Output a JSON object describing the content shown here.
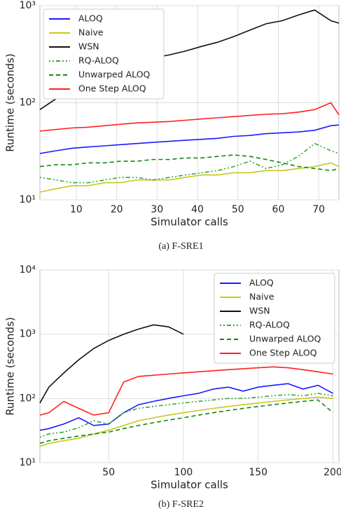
{
  "chart_data": [
    {
      "type": "line",
      "caption": "(a) F-SRE1",
      "xlabel": "Simulator calls",
      "ylabel": "Runtime (seconds)",
      "log_y": true,
      "grid": true,
      "legend": "upper left",
      "xlim": [
        1,
        75
      ],
      "xticks": [
        10,
        20,
        30,
        40,
        50,
        60,
        70
      ],
      "ylim": [
        10,
        1000
      ],
      "yticks": [
        {
          "value": 10,
          "label": "10¹"
        },
        {
          "value": 100,
          "label": "10²"
        },
        {
          "value": 1000,
          "label": "10³"
        }
      ],
      "x": [
        1,
        5,
        9,
        13,
        17,
        21,
        25,
        29,
        33,
        37,
        41,
        45,
        49,
        53,
        57,
        61,
        65,
        69,
        73,
        75
      ],
      "series": [
        {
          "name": "ALOQ",
          "color": "#1a1aff",
          "linestyle": "solid",
          "values": [
            30,
            32,
            34,
            35,
            36,
            37,
            38,
            39,
            40,
            41,
            42,
            43,
            45,
            46,
            48,
            49,
            50,
            52,
            58,
            59
          ]
        },
        {
          "name": "Naive",
          "color": "#c8c81e",
          "linestyle": "solid",
          "values": [
            12,
            13,
            14,
            14,
            15,
            15,
            16,
            16,
            16,
            17,
            18,
            18,
            19,
            19,
            20,
            20,
            21,
            22,
            24,
            22
          ]
        },
        {
          "name": "WSN",
          "color": "#111111",
          "linestyle": "solid",
          "values": [
            85,
            110,
            150,
            170,
            200,
            220,
            260,
            290,
            310,
            340,
            380,
            420,
            480,
            560,
            650,
            700,
            800,
            900,
            700,
            660
          ]
        },
        {
          "name": "RQ-ALOQ",
          "color": "#33aa33",
          "linestyle": "dashdot",
          "values": [
            17,
            16,
            15,
            15,
            16,
            17,
            17,
            16,
            17,
            18,
            19,
            20,
            22,
            25,
            21,
            23,
            28,
            38,
            32,
            30
          ]
        },
        {
          "name": "Unwarped ALOQ",
          "color": "#118811",
          "linestyle": "dashed",
          "values": [
            22,
            23,
            23,
            24,
            24,
            25,
            25,
            26,
            26,
            27,
            27,
            28,
            29,
            28,
            26,
            24,
            22,
            21,
            20,
            21
          ]
        },
        {
          "name": "One Step ALOQ",
          "color": "#ff2020",
          "linestyle": "solid",
          "values": [
            51,
            53,
            55,
            56,
            58,
            60,
            62,
            63,
            64,
            66,
            68,
            70,
            72,
            74,
            76,
            77,
            80,
            85,
            100,
            75
          ]
        }
      ]
    },
    {
      "type": "line",
      "caption": "(b) F-SRE2",
      "xlabel": "Simulator calls",
      "ylabel": "Runtime (seconds)",
      "log_y": true,
      "grid": true,
      "legend": "upper right",
      "xlim": [
        4,
        204
      ],
      "xticks": [
        50,
        100,
        150,
        200
      ],
      "ylim": [
        10,
        10000
      ],
      "yticks": [
        {
          "value": 10,
          "label": "10¹"
        },
        {
          "value": 100,
          "label": "10²"
        },
        {
          "value": 1000,
          "label": "10³"
        },
        {
          "value": 10000,
          "label": "10⁴"
        }
      ],
      "x": [
        4,
        10,
        20,
        30,
        40,
        50,
        60,
        70,
        80,
        90,
        100,
        110,
        120,
        130,
        140,
        150,
        160,
        170,
        180,
        190,
        200
      ],
      "series": [
        {
          "name": "ALOQ",
          "color": "#1a1aff",
          "linestyle": "solid",
          "values": [
            32,
            34,
            40,
            50,
            38,
            40,
            60,
            80,
            90,
            100,
            110,
            120,
            140,
            150,
            130,
            150,
            160,
            170,
            140,
            160,
            120
          ]
        },
        {
          "name": "Naive",
          "color": "#c8c81e",
          "linestyle": "solid",
          "values": [
            18,
            20,
            22,
            24,
            28,
            32,
            38,
            45,
            50,
            55,
            60,
            65,
            70,
            75,
            80,
            85,
            90,
            95,
            100,
            105,
            100
          ]
        },
        {
          "name": "WSN",
          "color": "#111111",
          "linestyle": "solid",
          "values": [
            85,
            150,
            250,
            400,
            600,
            800,
            1000,
            1200,
            1400,
            1300,
            1000,
            null,
            null,
            null,
            null,
            null,
            null,
            null,
            null,
            null,
            null
          ]
        },
        {
          "name": "RQ-ALOQ",
          "color": "#33aa33",
          "linestyle": "dashdot",
          "values": [
            25,
            28,
            30,
            35,
            45,
            40,
            60,
            70,
            75,
            80,
            85,
            90,
            95,
            100,
            100,
            105,
            110,
            115,
            110,
            120,
            110
          ]
        },
        {
          "name": "Unwarped ALOQ",
          "color": "#118811",
          "linestyle": "dashed",
          "values": [
            20,
            22,
            24,
            26,
            28,
            30,
            34,
            38,
            42,
            46,
            50,
            55,
            60,
            65,
            70,
            75,
            80,
            85,
            90,
            95,
            60
          ]
        },
        {
          "name": "One Step ALOQ",
          "color": "#ff2020",
          "linestyle": "solid",
          "values": [
            55,
            60,
            90,
            70,
            55,
            60,
            180,
            220,
            230,
            240,
            250,
            260,
            270,
            280,
            290,
            300,
            310,
            300,
            280,
            260,
            240
          ]
        }
      ]
    }
  ]
}
